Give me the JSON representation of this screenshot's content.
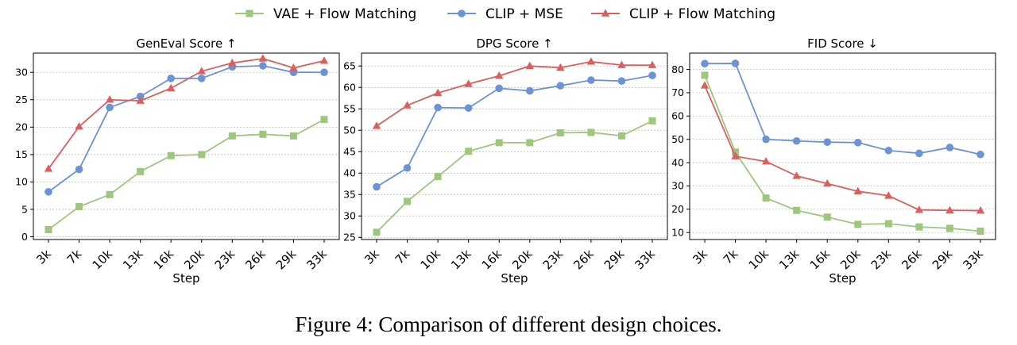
{
  "caption": "Figure 4: Comparison of different design choices.",
  "colors": {
    "vae_flow": "#9dc77c",
    "clip_mse": "#6b93d6",
    "clip_flow": "#d9605f"
  },
  "legend": [
    {
      "name": "VAE + Flow Matching",
      "marker": "square",
      "color": "#9dc77c"
    },
    {
      "name": "CLIP + MSE",
      "marker": "circle",
      "color": "#6b93d6"
    },
    {
      "name": "CLIP + Flow Matching",
      "marker": "triangle",
      "color": "#d9605f"
    }
  ],
  "chart_data": [
    {
      "type": "line",
      "title": "GenEval Score ↑",
      "xlabel": "Step",
      "ylabel": "",
      "categories": [
        "3k",
        "7k",
        "10k",
        "13k",
        "16k",
        "20k",
        "23k",
        "26k",
        "29k",
        "33k"
      ],
      "ylim": [
        -0.5,
        33.5
      ],
      "yticks": [
        0,
        5,
        10,
        15,
        20,
        25,
        30
      ],
      "grid": true,
      "series": [
        {
          "name": "VAE + Flow Matching",
          "marker": "square",
          "color": "#9dc77c",
          "values": [
            1.3,
            5.5,
            7.7,
            11.9,
            14.8,
            15.0,
            18.4,
            18.7,
            18.4,
            21.4
          ]
        },
        {
          "name": "CLIP + MSE",
          "marker": "circle",
          "color": "#6b93d6",
          "values": [
            8.2,
            12.3,
            23.6,
            25.6,
            28.9,
            28.9,
            31.0,
            31.2,
            30.0,
            30.0
          ]
        },
        {
          "name": "CLIP + Flow Matching",
          "marker": "triangle",
          "color": "#d9605f",
          "values": [
            12.4,
            20.1,
            25.0,
            24.8,
            27.1,
            30.2,
            31.7,
            32.5,
            30.8,
            32.1
          ]
        }
      ]
    },
    {
      "type": "line",
      "title": "DPG Score ↑",
      "xlabel": "Step",
      "ylabel": "",
      "categories": [
        "3k",
        "7k",
        "10k",
        "13k",
        "16k",
        "20k",
        "23k",
        "26k",
        "29k",
        "33k"
      ],
      "ylim": [
        24.5,
        68
      ],
      "yticks": [
        25,
        30,
        35,
        40,
        45,
        50,
        55,
        60,
        65
      ],
      "grid": true,
      "series": [
        {
          "name": "VAE + Flow Matching",
          "marker": "square",
          "color": "#9dc77c",
          "values": [
            26.2,
            33.4,
            39.2,
            45.1,
            47.1,
            47.1,
            49.4,
            49.5,
            48.7,
            52.2
          ]
        },
        {
          "name": "CLIP + MSE",
          "marker": "circle",
          "color": "#6b93d6",
          "values": [
            36.8,
            41.2,
            55.3,
            55.2,
            59.8,
            59.2,
            60.4,
            61.7,
            61.5,
            62.8
          ]
        },
        {
          "name": "CLIP + Flow Matching",
          "marker": "triangle",
          "color": "#d9605f",
          "values": [
            51.0,
            55.8,
            58.7,
            60.8,
            62.7,
            65.0,
            64.6,
            66.0,
            65.2,
            65.2
          ]
        }
      ]
    },
    {
      "type": "line",
      "title": "FID Score ↓",
      "xlabel": "Step",
      "ylabel": "",
      "categories": [
        "3k",
        "7k",
        "10k",
        "13k",
        "16k",
        "20k",
        "23k",
        "26k",
        "29k",
        "33k"
      ],
      "ylim": [
        7,
        87
      ],
      "yticks": [
        10,
        20,
        30,
        40,
        50,
        60,
        70,
        80
      ],
      "grid": true,
      "series": [
        {
          "name": "VAE + Flow Matching",
          "marker": "square",
          "color": "#9dc77c",
          "values": [
            77.5,
            44.5,
            24.8,
            19.5,
            16.6,
            13.5,
            13.8,
            12.4,
            11.8,
            10.6
          ]
        },
        {
          "name": "CLIP + MSE",
          "marker": "circle",
          "color": "#6b93d6",
          "values": [
            82.5,
            82.6,
            50.0,
            49.3,
            48.8,
            48.6,
            45.2,
            44.0,
            46.5,
            43.5
          ]
        },
        {
          "name": "CLIP + Flow Matching",
          "marker": "triangle",
          "color": "#d9605f",
          "values": [
            73.1,
            42.7,
            40.5,
            34.3,
            31.0,
            27.7,
            25.8,
            19.7,
            19.5,
            19.4
          ]
        }
      ]
    }
  ]
}
